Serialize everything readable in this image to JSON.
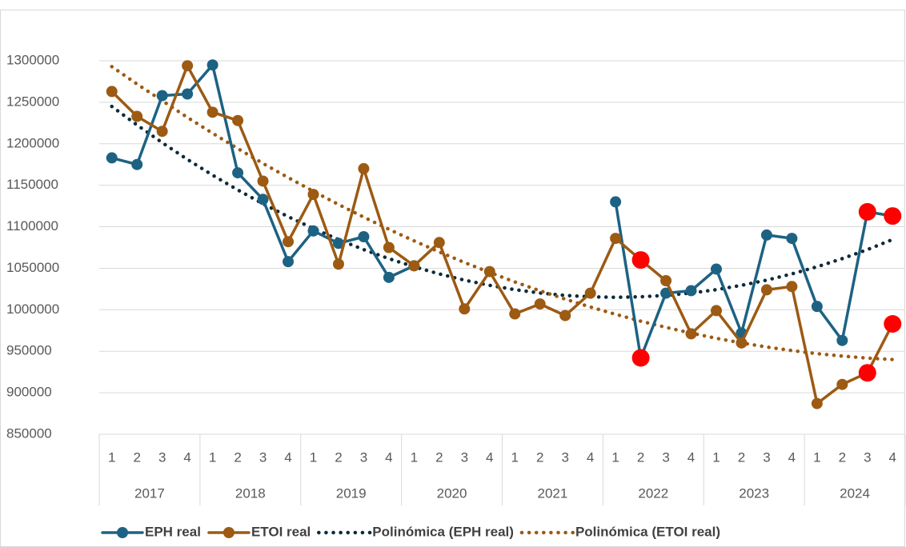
{
  "chart_data": {
    "type": "line",
    "categories": [
      "1",
      "2",
      "3",
      "4",
      "1",
      "2",
      "3",
      "4",
      "1",
      "2",
      "3",
      "4",
      "1",
      "2",
      "3",
      "4",
      "1",
      "2",
      "3",
      "4",
      "1",
      "2",
      "3",
      "4",
      "1",
      "2",
      "3",
      "4",
      "1",
      "2",
      "3",
      "4"
    ],
    "years": [
      "2017",
      "2018",
      "2019",
      "2020",
      "2021",
      "2022",
      "2023",
      "2024"
    ],
    "ylim": [
      850000,
      1300000
    ],
    "yticks": [
      850000,
      900000,
      950000,
      1000000,
      1050000,
      1100000,
      1150000,
      1200000,
      1250000,
      1300000
    ],
    "grid": true,
    "legend": "bottom",
    "highlight_color": "#ff0000",
    "series": [
      {
        "name": "EPH real",
        "color": "#1d6283",
        "style": "solid",
        "values": [
          1183000,
          1175000,
          1258000,
          1260000,
          1295000,
          1165000,
          1133000,
          1058000,
          1095000,
          1080000,
          1088000,
          1039000,
          1053000,
          null,
          null,
          null,
          null,
          null,
          null,
          null,
          1130000,
          942000,
          1020000,
          1023000,
          1049000,
          972000,
          1090000,
          1086000,
          1004000,
          963000,
          1118000,
          1113000
        ],
        "highlight": [
          21,
          30,
          31
        ]
      },
      {
        "name": "ETOI real",
        "color": "#9c5a13",
        "style": "solid",
        "values": [
          1263000,
          1233000,
          1215000,
          1294000,
          1238000,
          1228000,
          1155000,
          1082000,
          1139000,
          1055000,
          1170000,
          1075000,
          1053000,
          1081000,
          1001000,
          1046000,
          995000,
          1007000,
          993000,
          1020000,
          1086000,
          1060000,
          1035000,
          971000,
          999000,
          960000,
          1024000,
          1028000,
          887000,
          910000,
          924000,
          983000
        ],
        "highlight": [
          21,
          30,
          31
        ]
      },
      {
        "name": "Polinómica (EPH real)",
        "color": "#0d2a3a",
        "style": "dotted",
        "values": [
          1245000,
          1222600,
          1201300,
          1181200,
          1162200,
          1144400,
          1127700,
          1112200,
          1097800,
          1084600,
          1072500,
          1061600,
          1051800,
          1043200,
          1035700,
          1029400,
          1024200,
          1020200,
          1017300,
          1015600,
          1015000,
          1015600,
          1017300,
          1020200,
          1024200,
          1029400,
          1035700,
          1043200,
          1051800,
          1061600,
          1072500,
          1084600
        ]
      },
      {
        "name": "Polinómica (ETOI real)",
        "color": "#9c5a13",
        "style": "dotted",
        "values": [
          1293000,
          1272000,
          1251900,
          1231800,
          1212700,
          1194200,
          1176400,
          1159300,
          1142700,
          1126800,
          1111600,
          1097000,
          1083000,
          1069700,
          1057000,
          1045000,
          1033600,
          1022900,
          1012800,
          1003300,
          994500,
          986300,
          978800,
          971900,
          965600,
          960000,
          955100,
          950800,
          947100,
          944100,
          941700,
          940000
        ]
      }
    ]
  }
}
